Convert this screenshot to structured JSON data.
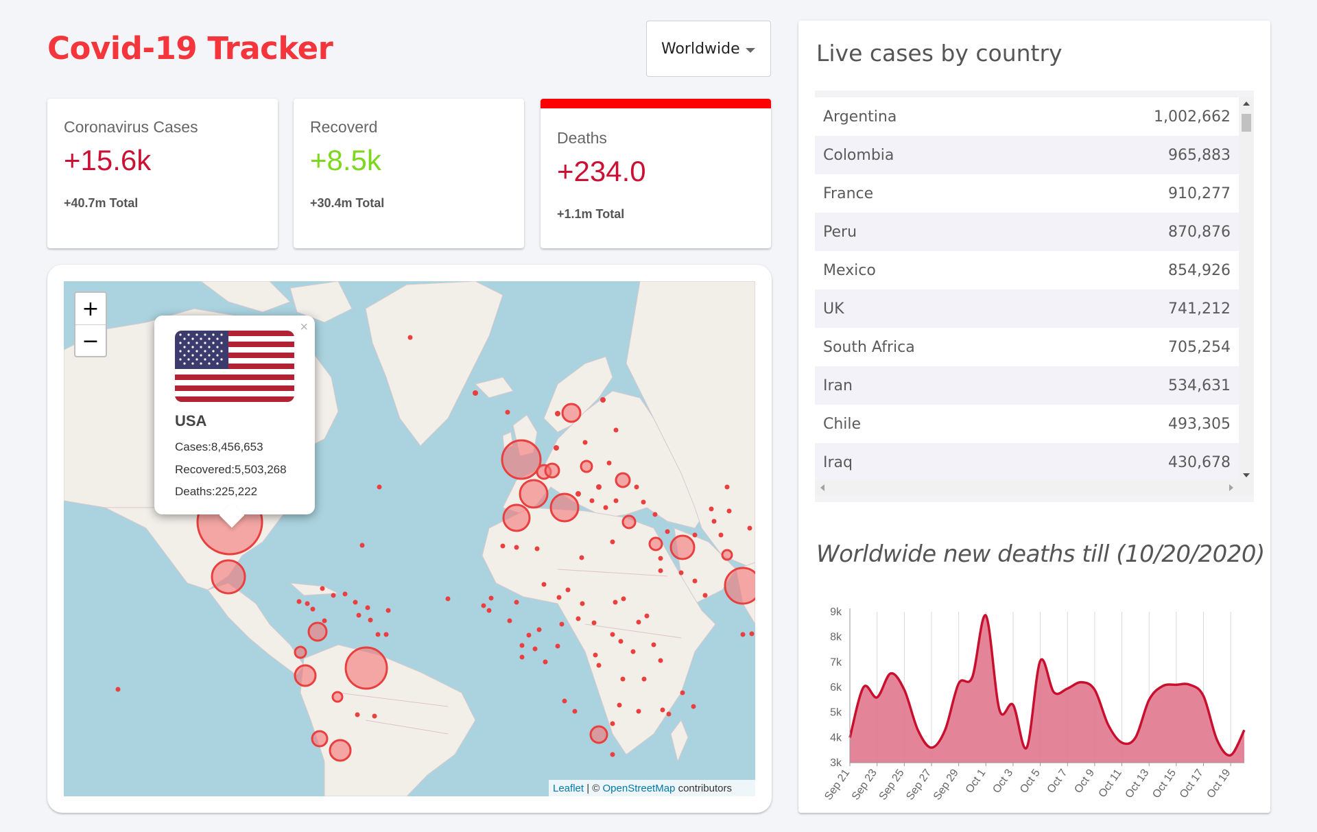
{
  "header": {
    "title": "Covid-19 Tracker",
    "country_select": "Worldwide"
  },
  "info_boxes": [
    {
      "title": "Coronavirus Cases",
      "value": "+15.6k",
      "total": "+40.7m Total"
    },
    {
      "title": "Recoverd",
      "value": "+8.5k",
      "total": "+30.4m Total"
    },
    {
      "title": "Deaths",
      "value": "+234.0",
      "total": "+1.1m Total"
    }
  ],
  "map": {
    "zoom_in": "+",
    "zoom_out": "−",
    "popup": {
      "close": "×",
      "country": "USA",
      "cases": "Cases:8,456,653",
      "recovered": "Recovered:5,503,268",
      "deaths": "Deaths:225,222"
    },
    "attribution": {
      "leaflet": "Leaflet",
      "sep": " | © ",
      "osm": "OpenStreetMap",
      "suffix": " contributors"
    }
  },
  "sidebar": {
    "table_title": "Live cases by country",
    "countries": [
      {
        "name": "Argentina",
        "cases": "1,002,662"
      },
      {
        "name": "Colombia",
        "cases": "965,883"
      },
      {
        "name": "France",
        "cases": "910,277"
      },
      {
        "name": "Peru",
        "cases": "870,876"
      },
      {
        "name": "Mexico",
        "cases": "854,926"
      },
      {
        "name": "UK",
        "cases": "741,212"
      },
      {
        "name": "South Africa",
        "cases": "705,254"
      },
      {
        "name": "Iran",
        "cases": "534,631"
      },
      {
        "name": "Chile",
        "cases": "493,305"
      },
      {
        "name": "Iraq",
        "cases": "430,678"
      }
    ],
    "chart_title": "Worldwide new deaths till (10/20/2020)"
  },
  "colors": {
    "accent": "#f4353b",
    "cases": "#cc1034",
    "recovered": "#7dd71d",
    "map_circle": "#f03c3c",
    "chart_fill": "#e17d92",
    "chart_line": "#c8102e"
  },
  "chart_data": {
    "type": "area",
    "x": [
      "Sep 21",
      "Sep 22",
      "Sep 23",
      "Sep 24",
      "Sep 25",
      "Sep 26",
      "Sep 27",
      "Sep 28",
      "Sep 29",
      "Sep 30",
      "Oct 1",
      "Oct 2",
      "Oct 3",
      "Oct 4",
      "Oct 5",
      "Oct 6",
      "Oct 7",
      "Oct 8",
      "Oct 9",
      "Oct 10",
      "Oct 11",
      "Oct 12",
      "Oct 13",
      "Oct 14",
      "Oct 15",
      "Oct 16",
      "Oct 17",
      "Oct 18",
      "Oct 19",
      "Oct 20"
    ],
    "x_tick_labels": [
      "Sep 21",
      "Sep 23",
      "Sep 25",
      "Sep 27",
      "Sep 29",
      "Oct 1",
      "Oct 3",
      "Oct 5",
      "Oct 7",
      "Oct 9",
      "Oct 11",
      "Oct 13",
      "Oct 15",
      "Oct 17",
      "Oct 19"
    ],
    "values": [
      4000,
      6000,
      5600,
      6550,
      5900,
      4300,
      3600,
      4300,
      6150,
      6400,
      8850,
      5100,
      5300,
      3600,
      7050,
      5800,
      5950,
      6200,
      5900,
      4500,
      3800,
      4000,
      5500,
      6050,
      6100,
      6100,
      5650,
      3900,
      3300,
      4300
    ],
    "y_ticks": [
      "3k",
      "4k",
      "5k",
      "6k",
      "7k",
      "8k",
      "9k"
    ],
    "ylim": [
      3000,
      9000
    ],
    "grid": "vertical"
  }
}
